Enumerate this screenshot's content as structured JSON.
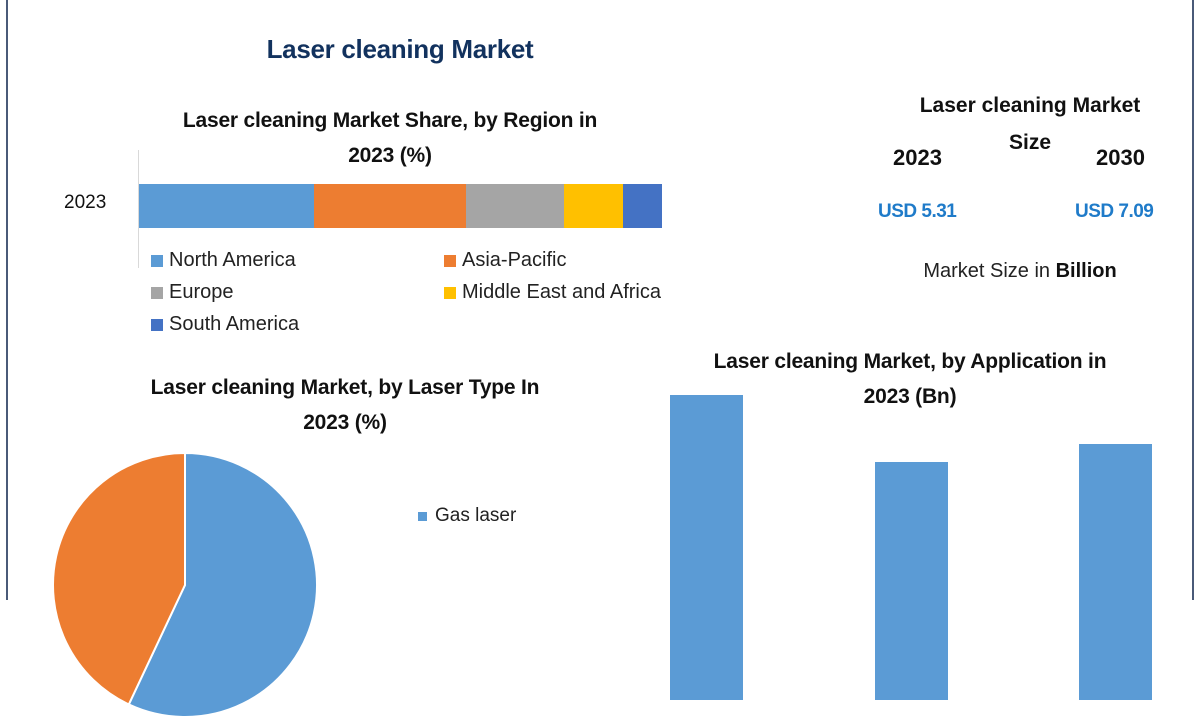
{
  "page": {
    "main_title": "Laser cleaning Market"
  },
  "market_size": {
    "title": "Laser cleaning Market",
    "title_sub": "Size",
    "year_start": "2023",
    "year_end": "2030",
    "value_start": "USD 5.31",
    "value_end": "USD 7.09",
    "note_prefix": "Market Size in ",
    "note_bold": "Billion"
  },
  "colors": {
    "north_america": "#5b9bd5",
    "asia_pacific": "#ed7d31",
    "europe": "#a5a5a5",
    "mea": "#ffc000",
    "south_america": "#4472c4",
    "title_navy": "#12325e",
    "usd_blue": "#1f7bc9",
    "frame": "#4a5a78"
  },
  "chart_data": [
    {
      "type": "bar",
      "orientation": "horizontal-stacked",
      "title": "Laser cleaning Market Share, by Region in 2023 (%)",
      "title_line1": "Laser cleaning Market Share, by Region in",
      "title_line2": "2023 (%)",
      "categories": [
        "2023"
      ],
      "series": [
        {
          "name": "North America",
          "values": [
            33.5
          ],
          "color": "#5b9bd5"
        },
        {
          "name": "Asia-Pacific",
          "values": [
            29.1
          ],
          "color": "#ed7d31"
        },
        {
          "name": "Europe",
          "values": [
            18.7
          ],
          "color": "#a5a5a5"
        },
        {
          "name": "Middle East and Africa",
          "values": [
            11.3
          ],
          "color": "#ffc000"
        },
        {
          "name": "South America",
          "values": [
            7.4
          ],
          "color": "#4472c4"
        }
      ],
      "xlabel": "",
      "ylabel": "",
      "grid": false,
      "legend_position": "bottom"
    },
    {
      "type": "pie",
      "title": "Laser cleaning Market, by Laser Type In 2023 (%)",
      "title_line1": "Laser cleaning Market, by Laser Type In",
      "title_line2": "2023 (%)",
      "slices": [
        {
          "name": "Gas laser",
          "value": 57,
          "color": "#5b9bd5"
        },
        {
          "name": "",
          "value": 43,
          "color": "#ed7d31"
        }
      ],
      "legend": [
        "Gas laser"
      ],
      "legend_position": "right"
    },
    {
      "type": "bar",
      "title": "Laser cleaning Market, by Application in 2023 (Bn)",
      "title_line1": "Laser cleaning Market, by Application in",
      "title_line2": "2023 (Bn)",
      "categories": [
        "",
        "",
        ""
      ],
      "values": [
        1.0,
        0.78,
        0.84
      ],
      "values_note": "relative heights only; bars cropped at image bottom, no axis labels visible",
      "color": "#5b9bd5",
      "xlabel": "",
      "ylabel": "",
      "grid": false
    }
  ]
}
